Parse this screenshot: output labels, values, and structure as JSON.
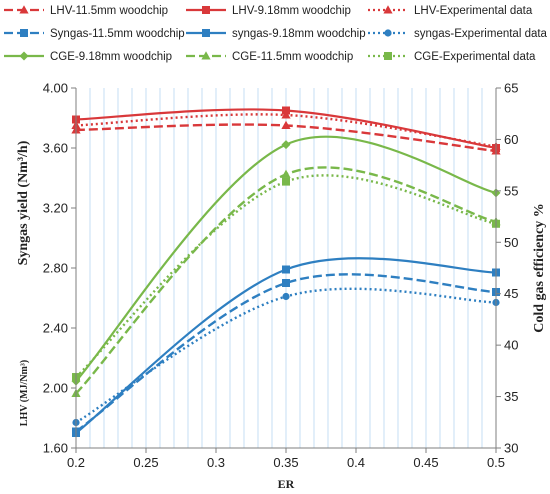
{
  "chart_data": {
    "type": "line",
    "x": [
      0.2,
      0.35,
      0.5
    ],
    "xlabel": "ER",
    "xlim": [
      0.2,
      0.5
    ],
    "xticks": [
      "0.2",
      "0.25",
      "0.3",
      "0.35",
      "0.4",
      "0.45",
      "0.5"
    ],
    "xtick_values": [
      0.2,
      0.25,
      0.3,
      0.35,
      0.4,
      0.45,
      0.5
    ],
    "ylabel": "Syngas yield (Nm³/h)",
    "ylabel2": "LHV (MJ/Nm³)",
    "ylim": [
      1.6,
      4.0
    ],
    "yticks": [
      "1.60",
      "2.00",
      "2.40",
      "2.80",
      "3.20",
      "3.60",
      "4.00"
    ],
    "ytick_values": [
      1.6,
      2.0,
      2.4,
      2.8,
      3.2,
      3.6,
      4.0
    ],
    "y2label": "Cold gas efficiency %",
    "y2lim": [
      30,
      65
    ],
    "y2ticks": [
      "30",
      "35",
      "40",
      "45",
      "50",
      "55",
      "60",
      "65"
    ],
    "y2tick_values": [
      30,
      35,
      40,
      45,
      50,
      55,
      60,
      65
    ],
    "grid": "vertical minor gridlines",
    "legend_position": "top",
    "series": [
      {
        "name": "LHV-11.5mm woodchip",
        "axis": "left",
        "color": "#d9383a",
        "dash": "long",
        "marker": "triangle",
        "values": [
          3.72,
          3.75,
          3.58
        ]
      },
      {
        "name": "LHV-9.18mm woodchip",
        "axis": "left",
        "color": "#d9383a",
        "dash": "solid",
        "marker": "square",
        "values": [
          3.79,
          3.85,
          3.6
        ]
      },
      {
        "name": "LHV-Experimental data",
        "axis": "left",
        "color": "#d9383a",
        "dash": "dot",
        "marker": "triangle",
        "values": [
          3.75,
          3.82,
          3.61
        ]
      },
      {
        "name": "Syngas-11.5mm woodchip",
        "axis": "left",
        "color": "#2e7fc1",
        "dash": "long",
        "marker": "square",
        "values": [
          1.71,
          2.7,
          2.64
        ]
      },
      {
        "name": "syngas-9.18mm woodchip",
        "axis": "left",
        "color": "#2e7fc1",
        "dash": "solid",
        "marker": "square",
        "values": [
          1.7,
          2.79,
          2.77
        ]
      },
      {
        "name": "syngas-Experimental data",
        "axis": "left",
        "color": "#2e7fc1",
        "dash": "dot",
        "marker": "circle",
        "values": [
          1.77,
          2.61,
          2.57
        ]
      },
      {
        "name": "CGE-9.18mm woodchip",
        "axis": "right",
        "color": "#79b84a",
        "dash": "solid",
        "marker": "diamond",
        "values": [
          36.5,
          59.5,
          54.8
        ]
      },
      {
        "name": "CGE-11.5mm woodchip",
        "axis": "right",
        "color": "#79b84a",
        "dash": "long",
        "marker": "triangle",
        "values": [
          35.3,
          56.6,
          52.0
        ]
      },
      {
        "name": "CGE-Experimental data",
        "axis": "right",
        "color": "#79b84a",
        "dash": "dot",
        "marker": "square",
        "values": [
          36.9,
          55.9,
          51.8
        ]
      }
    ]
  }
}
